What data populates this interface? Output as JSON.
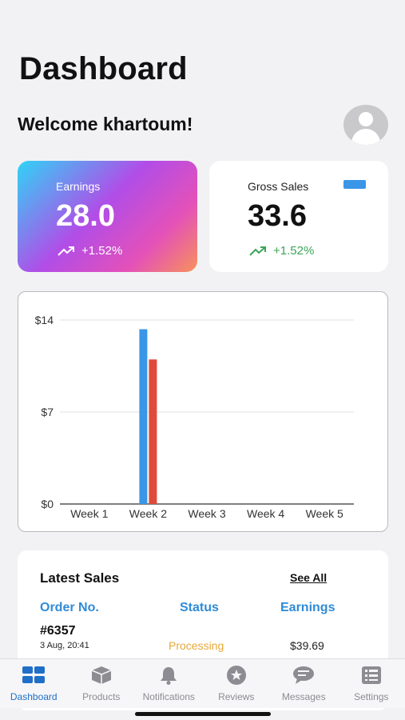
{
  "header": {
    "title": "Dashboard",
    "welcome": "Welcome khartoum!"
  },
  "cards": {
    "earnings": {
      "label": "Earnings",
      "value": "28.0",
      "change": "+1.52%"
    },
    "gross": {
      "label": "Gross Sales",
      "value": "33.6",
      "change": "+1.52%"
    }
  },
  "colors": {
    "accent": "#1f6fc8",
    "series_blue": "#3a96e6",
    "series_red": "#e04a3b",
    "positive": "#3aa556",
    "status_processing": "#e7a83a"
  },
  "chart_data": {
    "type": "bar",
    "categories": [
      "Week 1",
      "Week 2",
      "Week 3",
      "Week 4",
      "Week 5"
    ],
    "series": [
      {
        "values": [
          0,
          13.3,
          0,
          0,
          0
        ],
        "color": "#3a96e6"
      },
      {
        "values": [
          0,
          11.0,
          0,
          0,
          0
        ],
        "color": "#e04a3b"
      }
    ],
    "yticks": [
      "$0",
      "$7",
      "$14"
    ],
    "ytick_values": [
      0,
      7,
      14
    ],
    "ylim": [
      0,
      14
    ],
    "grid": true
  },
  "sales": {
    "title": "Latest Sales",
    "see_all": "See All",
    "columns": [
      "Order No.",
      "Status",
      "Earnings"
    ],
    "rows": [
      {
        "order": "#6357",
        "date": "3 Aug, 20:41",
        "status": "Processing",
        "amount": "$39.69"
      }
    ]
  },
  "tabs": [
    {
      "label": "Dashboard",
      "icon": "dashboard-icon",
      "active": true
    },
    {
      "label": "Products",
      "icon": "box-icon",
      "active": false
    },
    {
      "label": "Notifications",
      "icon": "bell-icon",
      "active": false
    },
    {
      "label": "Reviews",
      "icon": "star-icon",
      "active": false
    },
    {
      "label": "Messages",
      "icon": "chat-icon",
      "active": false
    },
    {
      "label": "Settings",
      "icon": "list-icon",
      "active": false
    }
  ]
}
